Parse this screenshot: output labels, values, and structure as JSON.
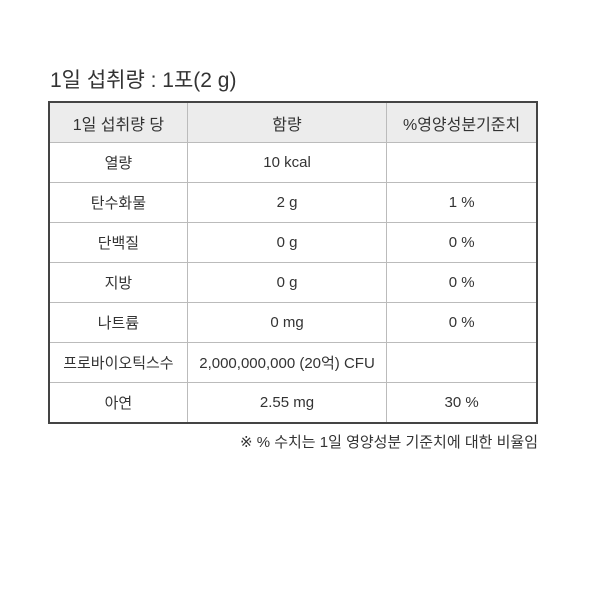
{
  "title": "1일 섭취량 : 1포(2 g)",
  "table": {
    "headers": [
      "1일 섭취량 당",
      "함량",
      "%영양성분기준치"
    ],
    "rows": [
      [
        "열량",
        "10 kcal",
        ""
      ],
      [
        "탄수화물",
        "2 g",
        "1 %"
      ],
      [
        "단백질",
        "0 g",
        "0 %"
      ],
      [
        "지방",
        "0 g",
        "0 %"
      ],
      [
        "나트륨",
        "0 mg",
        "0 %"
      ],
      [
        "프로바이오틱스수",
        "2,000,000,000 (20억) CFU",
        ""
      ],
      [
        "아연",
        "2.55 mg",
        "30 %"
      ]
    ]
  },
  "note": "※ % 수치는 1일 영양성분 기준치에 대한 비율임"
}
